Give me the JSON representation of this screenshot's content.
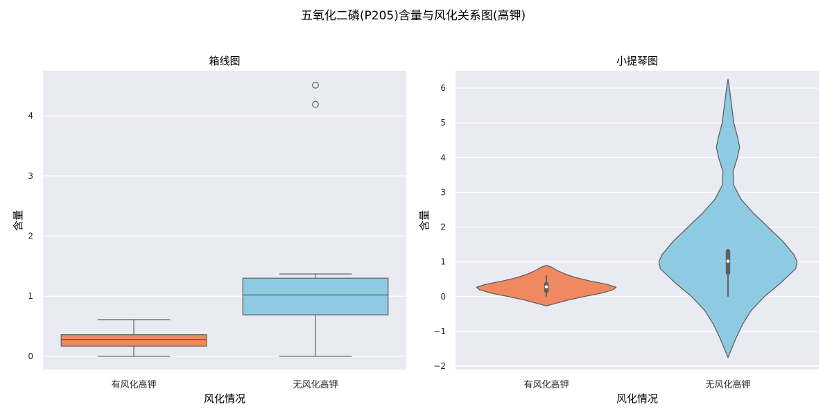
{
  "figure": {
    "suptitle": "五氧化二磷(P205)含量与风化关系图(高钾)"
  },
  "colors": {
    "background": "#EAEAF2",
    "grid": "#FFFFFF",
    "edge": "#5F5F5F",
    "weathered": "#F0895F",
    "unweathered": "#8FCAE3"
  },
  "chart_data": [
    {
      "type": "box",
      "title": "箱线图",
      "xlabel": "风化情况",
      "ylabel": "含量",
      "categories": [
        "有风化高钾",
        "无风化高钾"
      ],
      "ylim": [
        -0.22,
        4.75
      ],
      "yticks": [
        0,
        1,
        2,
        3,
        4
      ],
      "boxes": [
        {
          "category": "有风化高钾",
          "min": 0.0,
          "q1": 0.17,
          "median": 0.28,
          "q3": 0.36,
          "max": 0.61,
          "outliers": []
        },
        {
          "category": "无风化高钾",
          "min": 0.0,
          "q1": 0.69,
          "median": 1.02,
          "q3": 1.3,
          "max": 1.37,
          "outliers": [
            4.19,
            4.51
          ]
        }
      ],
      "grid": true
    },
    {
      "type": "violin",
      "title": "小提琴图",
      "xlabel": "风化情况",
      "ylabel": "含量",
      "categories": [
        "有风化高钾",
        "无风化高钾"
      ],
      "ylim": [
        -2.1,
        6.5
      ],
      "yticks": [
        -2,
        -1,
        0,
        1,
        2,
        3,
        4,
        5,
        6
      ],
      "violins": [
        {
          "category": "有风化高钾",
          "range": [
            -0.27,
            0.9
          ],
          "profile": [
            [
              -0.27,
              0.0
            ],
            [
              -0.2,
              0.12
            ],
            [
              -0.1,
              0.3
            ],
            [
              0.0,
              0.52
            ],
            [
              0.1,
              0.76
            ],
            [
              0.2,
              0.92
            ],
            [
              0.27,
              0.96
            ],
            [
              0.35,
              0.84
            ],
            [
              0.45,
              0.6
            ],
            [
              0.55,
              0.4
            ],
            [
              0.65,
              0.26
            ],
            [
              0.75,
              0.15
            ],
            [
              0.85,
              0.07
            ],
            [
              0.9,
              0.0
            ]
          ],
          "inner_box": {
            "q1": 0.17,
            "median": 0.28,
            "q3": 0.36,
            "whisker_low": 0.0,
            "whisker_high": 0.61
          }
        },
        {
          "category": "无风化高钾",
          "range": [
            -1.75,
            6.25
          ],
          "profile": [
            [
              -1.75,
              0.0
            ],
            [
              -1.5,
              0.05
            ],
            [
              -1.2,
              0.11
            ],
            [
              -0.8,
              0.2
            ],
            [
              -0.4,
              0.32
            ],
            [
              0.0,
              0.5
            ],
            [
              0.4,
              0.73
            ],
            [
              0.8,
              0.93
            ],
            [
              1.0,
              0.95
            ],
            [
              1.2,
              0.91
            ],
            [
              1.6,
              0.75
            ],
            [
              2.0,
              0.55
            ],
            [
              2.4,
              0.35
            ],
            [
              2.8,
              0.18
            ],
            [
              3.2,
              0.08
            ],
            [
              3.6,
              0.07
            ],
            [
              4.0,
              0.13
            ],
            [
              4.3,
              0.16
            ],
            [
              4.6,
              0.13
            ],
            [
              5.0,
              0.08
            ],
            [
              5.5,
              0.05
            ],
            [
              6.0,
              0.02
            ],
            [
              6.25,
              0.0
            ]
          ],
          "inner_box": {
            "q1": 0.69,
            "median": 1.02,
            "q3": 1.3,
            "whisker_low": 0.0,
            "whisker_high": 1.37
          }
        }
      ],
      "grid": true
    }
  ]
}
